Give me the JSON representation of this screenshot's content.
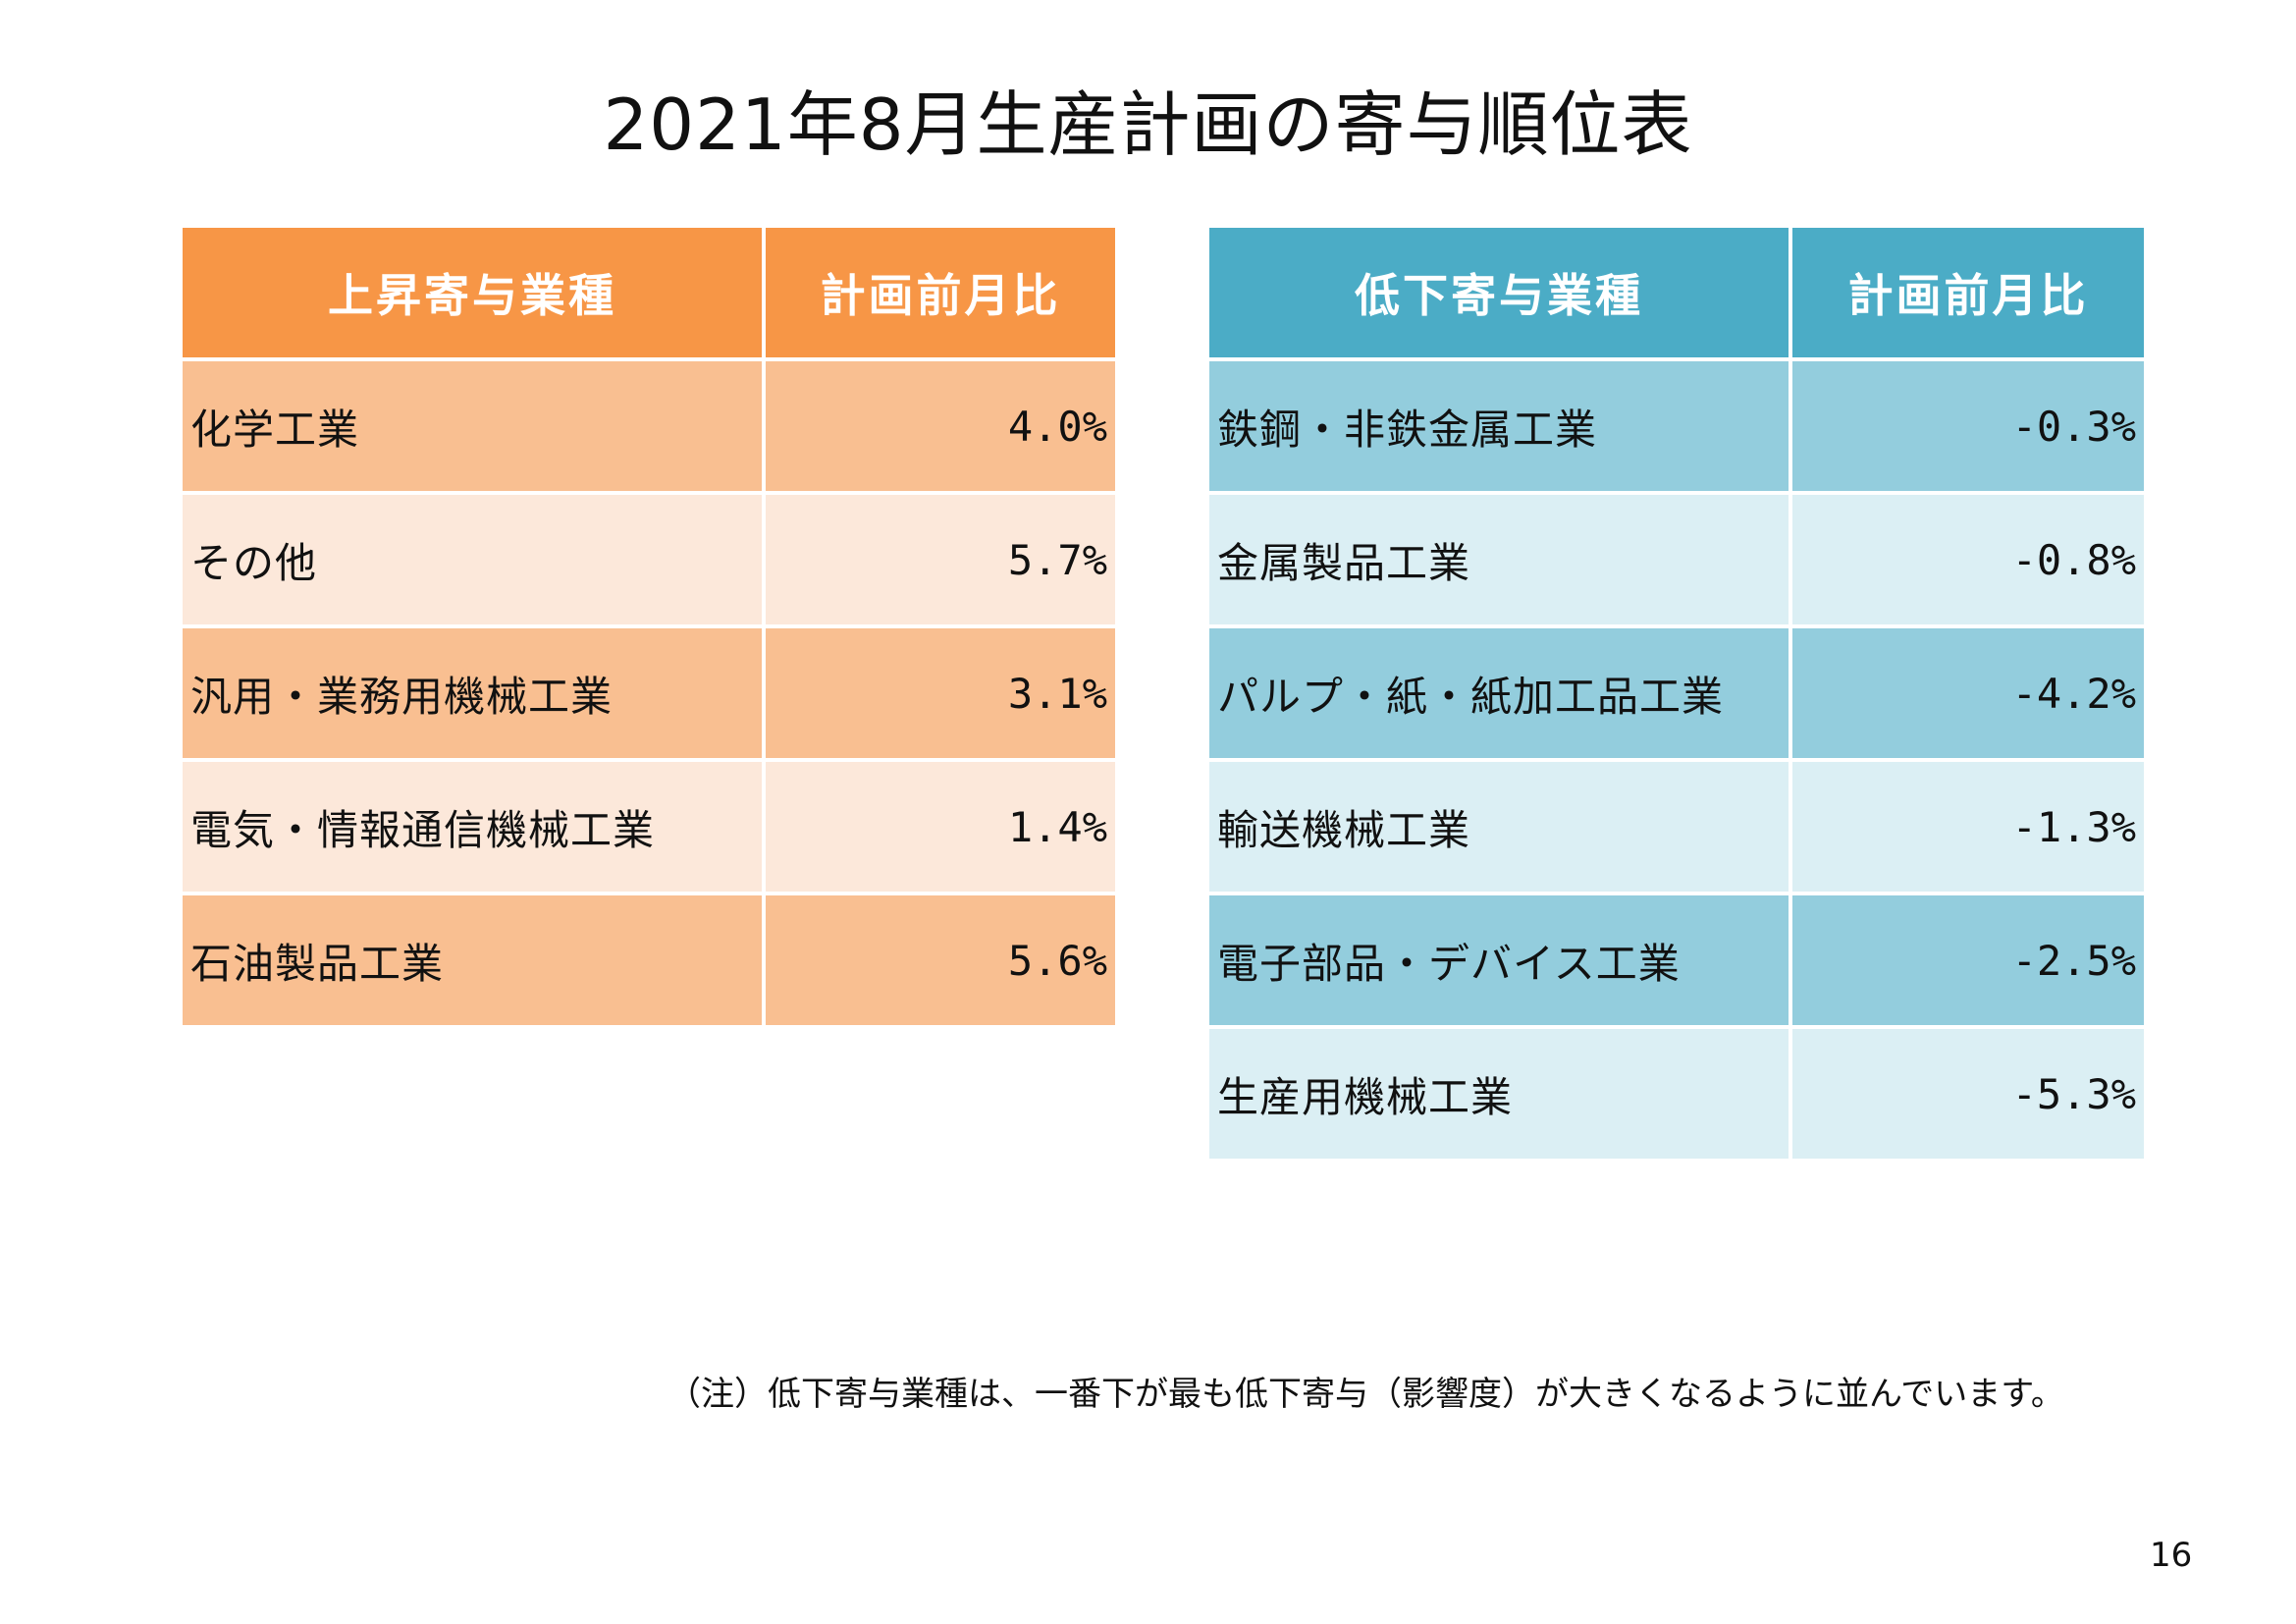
{
  "title": "2021年8月生産計画の寄与順位表",
  "colors": {
    "increase_header": "#F79646",
    "increase_row_dark": "#F9BF91",
    "increase_row_light": "#FCE8DA",
    "decrease_header": "#4BACC6",
    "decrease_row_dark": "#93CDDD",
    "decrease_row_light": "#DBEFF4"
  },
  "increase_table": {
    "header": {
      "name": "上昇寄与業種",
      "value": "計画前月比"
    },
    "rows": [
      {
        "name": "化学工業",
        "value": "4.0%"
      },
      {
        "name": "その他",
        "value": "5.7%"
      },
      {
        "name": "汎用・業務用機械工業",
        "value": "3.1%"
      },
      {
        "name": "電気・情報通信機械工業",
        "value": "1.4%"
      },
      {
        "name": "石油製品工業",
        "value": "5.6%"
      }
    ]
  },
  "decrease_table": {
    "header": {
      "name": "低下寄与業種",
      "value": "計画前月比"
    },
    "rows": [
      {
        "name": "鉄鋼・非鉄金属工業",
        "value": "-0.3%"
      },
      {
        "name": "金属製品工業",
        "value": "-0.8%"
      },
      {
        "name": "パルプ・紙・紙加工品工業",
        "value": "-4.2%"
      },
      {
        "name": "輸送機械工業",
        "value": "-1.3%"
      },
      {
        "name": "電子部品・デバイス工業",
        "value": "-2.5%"
      },
      {
        "name": "生産用機械工業",
        "value": "-5.3%"
      }
    ]
  },
  "note": "（注）低下寄与業種は、一番下が最も低下寄与（影響度）が大きくなるように並んでいます。",
  "page_number": "16"
}
